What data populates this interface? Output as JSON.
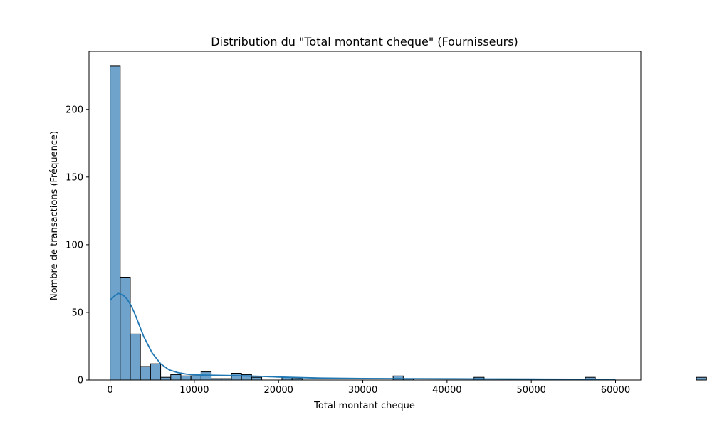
{
  "chart_data": {
    "type": "bar",
    "title": "Distribution du \"Total montant cheque\" (Fournisseurs)",
    "xlabel": "Total montant cheque",
    "ylabel": "Nombre de transactions (Fréquence)",
    "xlim": [
      -2500,
      63000
    ],
    "ylim": [
      0,
      243
    ],
    "xticks": [
      0,
      10000,
      20000,
      30000,
      40000,
      50000,
      60000
    ],
    "yticks": [
      0,
      50,
      100,
      150,
      200
    ],
    "bin_width": 1200,
    "bin_start": 0,
    "values": [
      232,
      76,
      34,
      10,
      12,
      2,
      4,
      3,
      3,
      6,
      1,
      1,
      5,
      4,
      2,
      0,
      0,
      2,
      1,
      0,
      0,
      0,
      0,
      0,
      0,
      0,
      0,
      0,
      3,
      1,
      0,
      0,
      0,
      0,
      0,
      0,
      2,
      0,
      0,
      0,
      0,
      0,
      0,
      0,
      0,
      0,
      0,
      2,
      0,
      0,
      0,
      0,
      0,
      0,
      0,
      0,
      0,
      0,
      2
    ],
    "kde": {
      "x": [
        0,
        500,
        1000,
        1500,
        2000,
        2500,
        3000,
        3500,
        4000,
        5000,
        6000,
        7000,
        8000,
        9000,
        10000,
        12000,
        14000,
        16000,
        18000,
        20000,
        25000,
        30000,
        35000,
        40000,
        45000,
        50000,
        55000,
        60000
      ],
      "y": [
        59,
        62,
        64,
        63,
        60,
        55,
        48,
        40,
        32,
        20,
        12,
        7.5,
        5.5,
        4.4,
        3.8,
        3.5,
        3.3,
        3.0,
        2.7,
        2.2,
        1.4,
        1.1,
        1.0,
        0.9,
        0.8,
        0.7,
        0.6,
        0.6
      ]
    },
    "colors": {
      "bar_fill": "#6fa3cb",
      "bar_edge": "#000000",
      "kde_line": "#1f77b4",
      "axes": "#000000"
    },
    "grid": false,
    "legend": "none"
  }
}
